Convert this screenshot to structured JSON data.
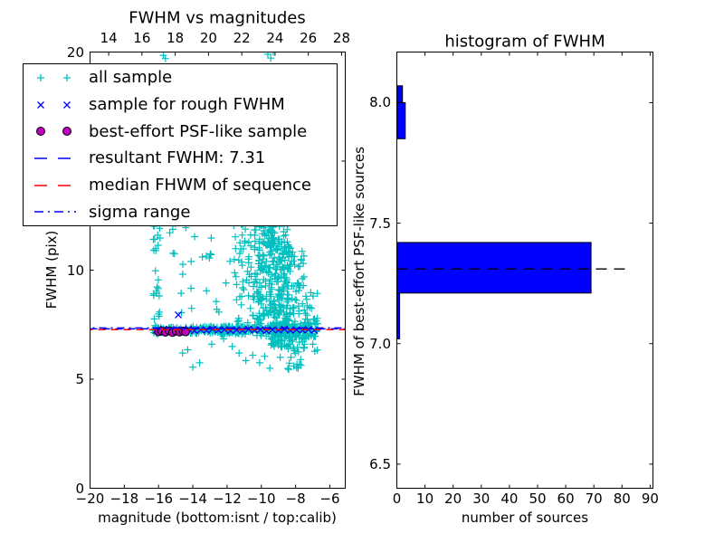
{
  "colors": {
    "cyan": "#00bfbf",
    "blue": "#0000ff",
    "red": "#ff0000",
    "magenta": "#bf00bf",
    "black": "#000000",
    "bar_fill": "#0000ff",
    "background": "#ffffff"
  },
  "chart_data": [
    {
      "type": "scatter",
      "title": "FWHM vs magnitudes",
      "xlabel": "magnitude (bottom:isnt / top:calib)",
      "ylabel": "FWHM (pix)",
      "xlim": [
        -20,
        -5.1
      ],
      "ylim": [
        0,
        20
      ],
      "grid": false,
      "xtick_values": [
        -20,
        -18,
        -16,
        -14,
        -12,
        -10,
        -8,
        -6
      ],
      "xtick_labels": [
        "−20",
        "−18",
        "−16",
        "−14",
        "−12",
        "−10",
        "−8",
        "−6"
      ],
      "ytick_values": [
        0,
        5,
        10,
        15,
        20
      ],
      "ytick_labels": [
        "0",
        "5",
        "10",
        "15",
        "20"
      ],
      "top_axis": {
        "xlim": [
          12.88,
          28.22
        ],
        "tick_values": [
          14,
          16,
          18,
          20,
          22,
          24,
          26,
          28
        ],
        "tick_labels": [
          "14",
          "16",
          "18",
          "20",
          "22",
          "24",
          "26",
          "28"
        ]
      },
      "series": [
        {
          "name": "all sample",
          "marker": "plus",
          "color": "#00bfbf",
          "clusters": [
            {
              "x": [
                -16.35,
                -14.4
              ],
              "y": [
                7.12,
                7.4
              ],
              "n": 45
            },
            {
              "x": [
                -14.4,
                -12.5
              ],
              "y": [
                7.1,
                7.42
              ],
              "n": 70
            },
            {
              "x": [
                -12.5,
                -10.4
              ],
              "y": [
                7.05,
                7.45
              ],
              "n": 95
            },
            {
              "x": [
                -10.4,
                -8.0
              ],
              "y": [
                6.95,
                7.55
              ],
              "n": 115
            },
            {
              "x": [
                -8.0,
                -6.7
              ],
              "y": [
                6.9,
                7.6
              ],
              "n": 45
            },
            {
              "x": [
                -16.3,
                -15.9
              ],
              "y": [
                6.7,
                12.3
              ],
              "n": 30
            },
            {
              "x": [
                -15.4,
                -11.8
              ],
              "y": [
                7.9,
                12.4
              ],
              "n": 24
            },
            {
              "x": [
                -11.7,
                -10.2
              ],
              "y": [
                7.5,
                12.3
              ],
              "n": 65
            },
            {
              "x": [
                -10.3,
                -9.4
              ],
              "y": [
                7.6,
                12.5
              ],
              "n": 110
            },
            {
              "x": [
                -9.5,
                -8.4
              ],
              "y": [
                6.3,
                12.5
              ],
              "n": 240
            },
            {
              "x": [
                -8.5,
                -7.5
              ],
              "y": [
                5.4,
                11.2
              ],
              "n": 90
            },
            {
              "x": [
                -7.5,
                -6.7
              ],
              "y": [
                6.2,
                9.0
              ],
              "n": 30
            }
          ],
          "points": [
            [
              -15.72,
              19.85
            ],
            [
              -15.6,
              19.7
            ],
            [
              -9.62,
              19.9
            ],
            [
              -9.45,
              19.72
            ],
            [
              -9.3,
              20.0
            ],
            [
              -14.6,
              6.2
            ],
            [
              -14.3,
              6.35
            ],
            [
              -14.0,
              5.55
            ],
            [
              -13.6,
              5.75
            ],
            [
              -12.9,
              6.6
            ],
            [
              -12.2,
              6.85
            ],
            [
              -11.7,
              6.5
            ],
            [
              -11.3,
              6.2
            ],
            [
              -10.9,
              5.85
            ],
            [
              -10.5,
              6.1
            ],
            [
              -10.1,
              5.75
            ],
            [
              -9.8,
              6.05
            ],
            [
              -9.5,
              5.5
            ],
            [
              -8.9,
              6.0
            ],
            [
              -8.4,
              5.45
            ],
            [
              -8.1,
              5.6
            ],
            [
              -7.7,
              5.9
            ],
            [
              -12.6,
              8.2
            ],
            [
              -13.2,
              9.05
            ],
            [
              -14.1,
              10.4
            ]
          ]
        },
        {
          "name": "sample for rough FWHM",
          "marker": "cross",
          "color": "#0000ff",
          "points": [
            [
              -14.85,
              7.95
            ],
            [
              -16.15,
              7.24
            ],
            [
              -15.7,
              7.3
            ],
            [
              -15.3,
              7.22
            ],
            [
              -14.95,
              7.28
            ],
            [
              -14.6,
              7.25
            ],
            [
              -14.25,
              7.3
            ],
            [
              -13.9,
              7.22
            ],
            [
              -13.55,
              7.27
            ],
            [
              -13.2,
              7.24
            ],
            [
              -12.85,
              7.3
            ],
            [
              -12.5,
              7.25
            ],
            [
              -12.15,
              7.28
            ],
            [
              -11.8,
              7.22
            ],
            [
              -11.45,
              7.27
            ],
            [
              -11.1,
              7.24
            ],
            [
              -10.75,
              7.3
            ],
            [
              -10.4,
              7.25
            ],
            [
              -10.05,
              7.28
            ],
            [
              -9.7,
              7.22
            ],
            [
              -9.35,
              7.27
            ],
            [
              -9.0,
              7.25
            ],
            [
              -8.65,
              7.3
            ],
            [
              -8.3,
              7.24
            ],
            [
              -7.95,
              7.27
            ],
            [
              -7.6,
              7.25
            ],
            [
              -7.25,
              7.28
            ],
            [
              -6.9,
              7.24
            ]
          ]
        },
        {
          "name": "best-effort PSF-like sample",
          "marker": "circle",
          "color": "#bf00bf",
          "edge_color": "#000000",
          "points": [
            [
              -16.0,
              7.17
            ],
            [
              -15.82,
              7.21
            ],
            [
              -15.6,
              7.15
            ],
            [
              -15.38,
              7.22
            ],
            [
              -15.18,
              7.14
            ],
            [
              -14.97,
              7.2
            ],
            [
              -14.77,
              7.16
            ],
            [
              -14.57,
              7.21
            ],
            [
              -14.42,
              7.17
            ]
          ]
        }
      ],
      "lines": [
        {
          "label": "resultant FWHM: 7.31",
          "y": 7.31,
          "color": "#0000ff",
          "style": "dashed"
        },
        {
          "label": "median FHWM of sequence",
          "y": 7.27,
          "color": "#ff0000",
          "style": "dashed"
        },
        {
          "label": "sigma range",
          "y": 7.35,
          "color": "#0000ff",
          "style": "dashdot"
        }
      ]
    },
    {
      "type": "bar",
      "orientation": "horizontal",
      "title": "histogram of FWHM",
      "xlabel": "number of sources",
      "ylabel": "FWHM of best-effort PSF-like sources",
      "xlim": [
        0,
        91
      ],
      "ylim": [
        6.4,
        8.21
      ],
      "grid": false,
      "xtick_values": [
        0,
        10,
        20,
        30,
        40,
        50,
        60,
        70,
        80,
        90
      ],
      "xtick_labels": [
        "0",
        "10",
        "20",
        "30",
        "40",
        "50",
        "60",
        "70",
        "80",
        "90"
      ],
      "ytick_values": [
        6.5,
        7.0,
        7.5,
        8.0
      ],
      "ytick_labels": [
        "6.5",
        "7.0",
        "7.5",
        "8.0"
      ],
      "bar_color": "#0000ff",
      "bar_edge_color": "#000000",
      "bars": [
        {
          "y_from": 7.02,
          "y_to": 7.21,
          "value": 1
        },
        {
          "y_from": 7.21,
          "y_to": 7.42,
          "value": 69
        },
        {
          "y_from": 7.85,
          "y_to": 8.0,
          "value": 3
        },
        {
          "y_from": 8.0,
          "y_to": 8.07,
          "value": 2
        }
      ],
      "median_line": {
        "y": 7.31,
        "x_from": 0,
        "x_to": 83,
        "color": "#000000",
        "style": "dashed"
      }
    }
  ],
  "legend": {
    "items": [
      {
        "label": "all sample",
        "marker": "plus",
        "color": "#00bfbf"
      },
      {
        "label": "sample for rough FWHM",
        "marker": "cross",
        "color": "#0000ff"
      },
      {
        "label": "best-effort PSF-like sample",
        "marker": "circle",
        "color": "#bf00bf",
        "edge_color": "#000000"
      },
      {
        "label": "resultant FWHM: 7.31",
        "marker": "dashed-line",
        "color": "#0000ff"
      },
      {
        "label": "median FHWM of sequence",
        "marker": "dashed-line",
        "color": "#ff0000"
      },
      {
        "label": "sigma range",
        "marker": "dashdot-line",
        "color": "#0000ff"
      }
    ]
  }
}
